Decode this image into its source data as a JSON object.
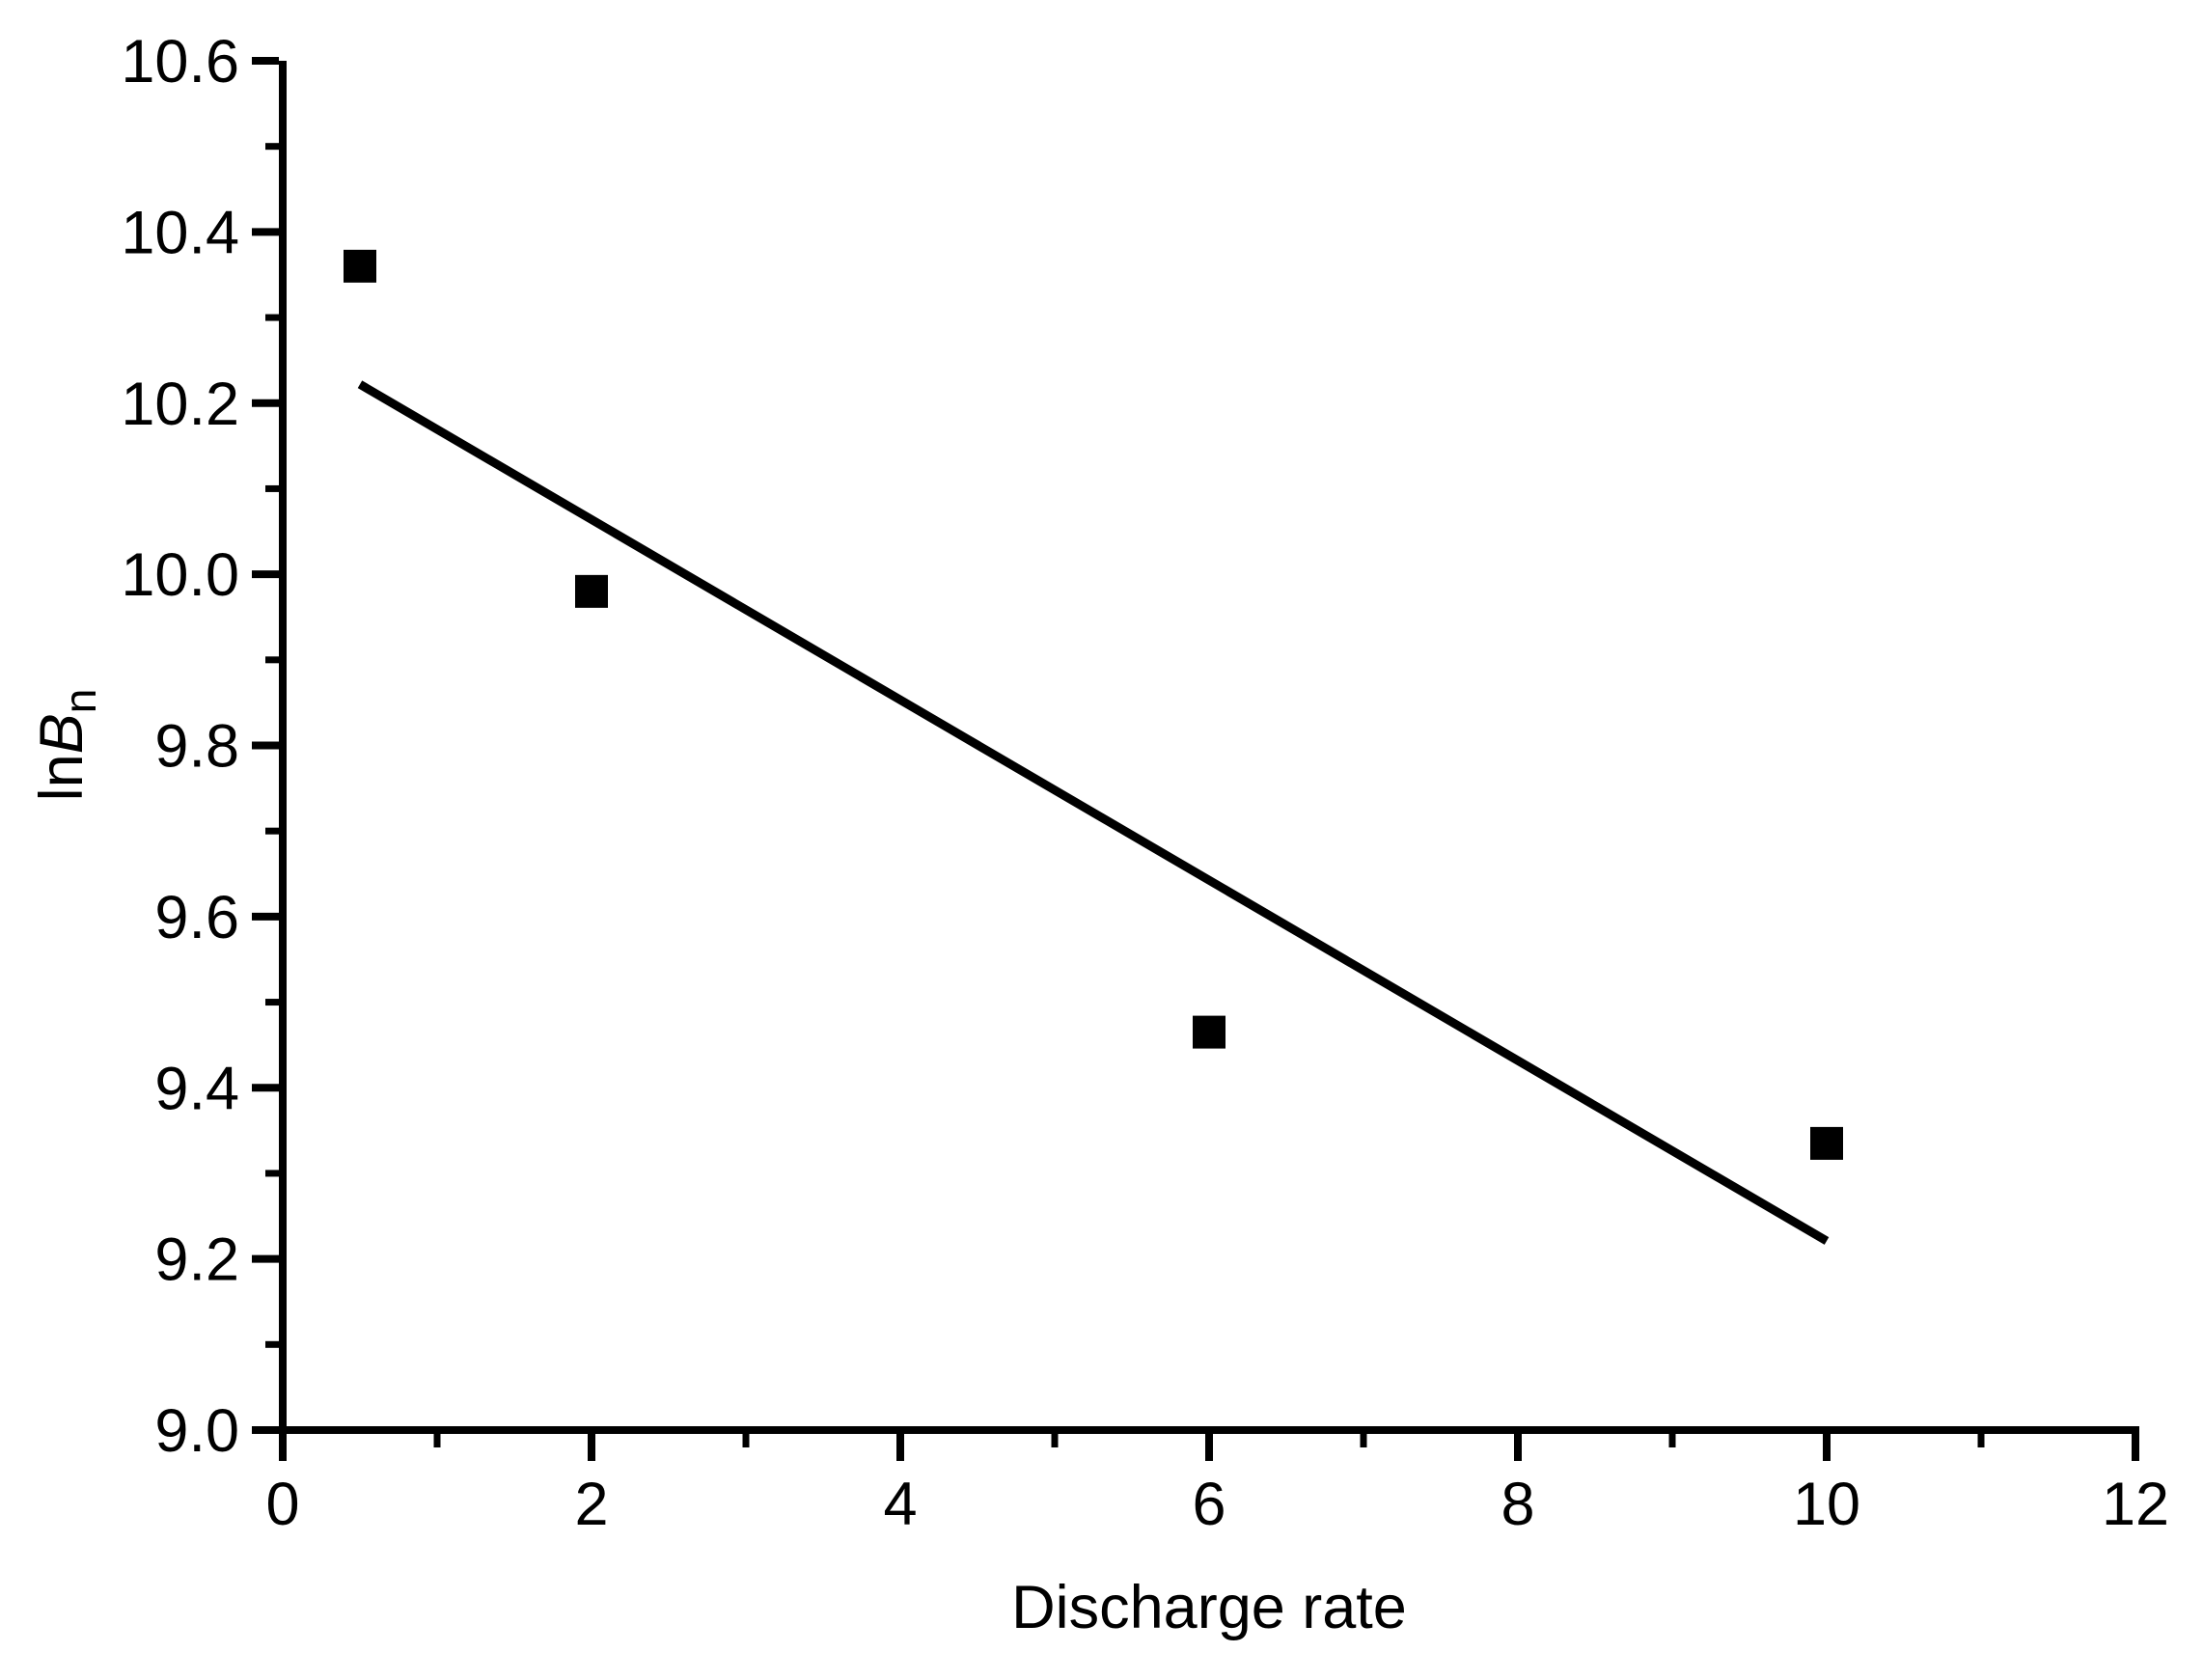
{
  "page": {
    "background_color": "#ffffff",
    "foreground_color": "#000000"
  },
  "chart_data": {
    "type": "scatter",
    "title": "",
    "xlabel": "Discharge rate",
    "ylabel": "lnBn",
    "ylabel_parts": {
      "prefix": "ln",
      "symbol": "B",
      "subscript": "n"
    },
    "xlim": [
      0,
      12
    ],
    "ylim": [
      9.0,
      10.6
    ],
    "grid": false,
    "legend_position": "none",
    "frame": "left-bottom-only",
    "x_axis": {
      "major_ticks": [
        0,
        2,
        4,
        6,
        8,
        10,
        12
      ],
      "major_tick_labels": [
        "0",
        "2",
        "4",
        "6",
        "8",
        "10",
        "12"
      ],
      "minor_ticks": [
        1,
        3,
        5,
        7,
        9,
        11
      ],
      "tick_direction": "out"
    },
    "y_axis": {
      "major_ticks": [
        9.0,
        9.2,
        9.4,
        9.6,
        9.8,
        10.0,
        10.2,
        10.4,
        10.6
      ],
      "major_tick_labels": [
        "9.0",
        "9.2",
        "9.4",
        "9.6",
        "9.8",
        "10.0",
        "10.2",
        "10.4",
        "10.6"
      ],
      "minor_ticks": [
        9.1,
        9.3,
        9.5,
        9.7,
        9.9,
        10.1,
        10.3,
        10.5
      ],
      "tick_direction": "out"
    },
    "series": [
      {
        "name": "data-points",
        "type": "scatter",
        "marker": "square",
        "color": "#000000",
        "points": [
          [
            0.5,
            10.36
          ],
          [
            2.0,
            9.98
          ],
          [
            6.0,
            9.465
          ],
          [
            10.0,
            9.335
          ]
        ]
      },
      {
        "name": "linear-fit-line",
        "type": "line",
        "color": "#000000",
        "points": [
          [
            0.5,
            10.222
          ],
          [
            10.0,
            9.221
          ]
        ]
      }
    ]
  }
}
